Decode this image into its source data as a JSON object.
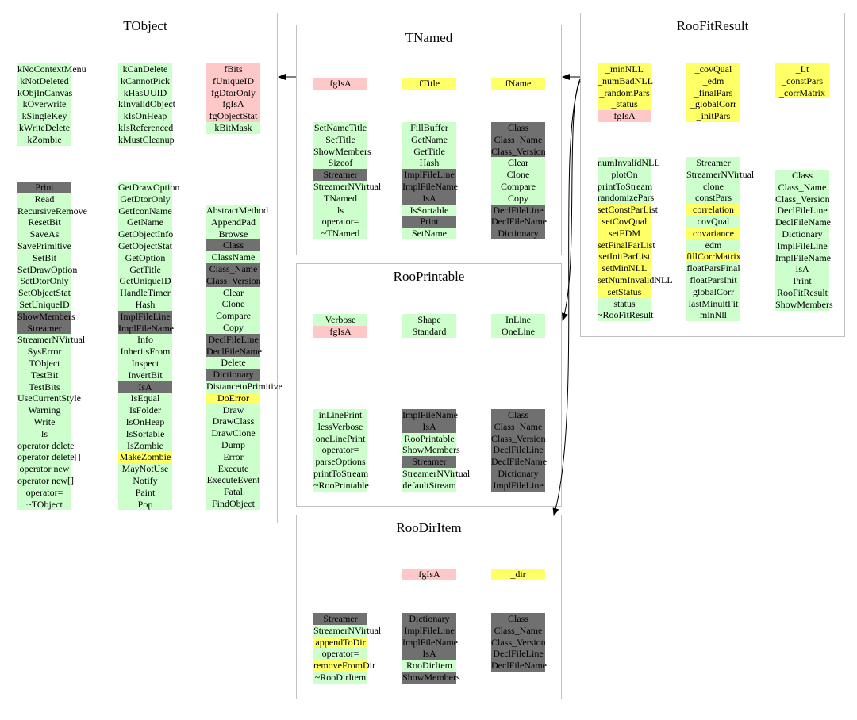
{
  "colors": {
    "green": "#ccffcc",
    "dark": "#707070",
    "yellow": "#ffff66",
    "pink": "#ffc8c8",
    "border": "#c0c0c0"
  },
  "boxes": {
    "tobject": {
      "title": "TObject",
      "col1_top": [
        [
          "kNoContextMenu",
          "g"
        ],
        [
          "kNotDeleted",
          "g"
        ],
        [
          "kObjInCanvas",
          "g"
        ],
        [
          "kOverwrite",
          "g"
        ],
        [
          "kSingleKey",
          "g"
        ],
        [
          "kWriteDelete",
          "g"
        ],
        [
          "kZombie",
          "g"
        ]
      ],
      "col2_top": [
        [
          "kCanDelete",
          "g"
        ],
        [
          "kCannotPick",
          "g"
        ],
        [
          "kHasUUID",
          "g"
        ],
        [
          "kInvalidObject",
          "g"
        ],
        [
          "kIsOnHeap",
          "g"
        ],
        [
          "kIsReferenced",
          "g"
        ],
        [
          "kMustCleanup",
          "g"
        ]
      ],
      "col3_top": [
        [
          "fBits",
          "p"
        ],
        [
          "fUniqueID",
          "p"
        ],
        [
          "fgDtorOnly",
          "p"
        ],
        [
          "fgIsA",
          "p"
        ],
        [
          "fgObjectStat",
          "p"
        ],
        [
          "kBitMask",
          "g"
        ]
      ],
      "col1_bottom": [
        [
          "Print",
          "d"
        ],
        [
          "Read",
          "g"
        ],
        [
          "RecursiveRemove",
          "g"
        ],
        [
          "ResetBit",
          "g"
        ],
        [
          "SaveAs",
          "g"
        ],
        [
          "SavePrimitive",
          "g"
        ],
        [
          "SetBit",
          "g"
        ],
        [
          "SetDrawOption",
          "g"
        ],
        [
          "SetDtorOnly",
          "g"
        ],
        [
          "SetObjectStat",
          "g"
        ],
        [
          "SetUniqueID",
          "g"
        ],
        [
          "ShowMembers",
          "d"
        ],
        [
          "Streamer",
          "d"
        ],
        [
          "StreamerNVirtual",
          "g"
        ],
        [
          "SysError",
          "g"
        ],
        [
          "TObject",
          "g"
        ],
        [
          "TestBit",
          "g"
        ],
        [
          "TestBits",
          "g"
        ],
        [
          "UseCurrentStyle",
          "g"
        ],
        [
          "Warning",
          "g"
        ],
        [
          "Write",
          "g"
        ],
        [
          "ls",
          "g"
        ],
        [
          "operator delete",
          "g"
        ],
        [
          "operator delete[]",
          "g"
        ],
        [
          "operator new",
          "g"
        ],
        [
          "operator new[]",
          "g"
        ],
        [
          "operator=",
          "g"
        ],
        [
          "~TObject",
          "g"
        ]
      ],
      "col2_bottom": [
        [
          "GetDrawOption",
          "g"
        ],
        [
          "GetDtorOnly",
          "g"
        ],
        [
          "GetIconName",
          "g"
        ],
        [
          "GetName",
          "g"
        ],
        [
          "GetObjectInfo",
          "g"
        ],
        [
          "GetObjectStat",
          "g"
        ],
        [
          "GetOption",
          "g"
        ],
        [
          "GetTitle",
          "g"
        ],
        [
          "GetUniqueID",
          "g"
        ],
        [
          "HandleTimer",
          "g"
        ],
        [
          "Hash",
          "g"
        ],
        [
          "ImplFileLine",
          "d"
        ],
        [
          "ImplFileName",
          "d"
        ],
        [
          "Info",
          "g"
        ],
        [
          "InheritsFrom",
          "g"
        ],
        [
          "Inspect",
          "g"
        ],
        [
          "InvertBit",
          "g"
        ],
        [
          "IsA",
          "d"
        ],
        [
          "IsEqual",
          "g"
        ],
        [
          "IsFolder",
          "g"
        ],
        [
          "IsOnHeap",
          "g"
        ],
        [
          "IsSortable",
          "g"
        ],
        [
          "IsZombie",
          "g"
        ],
        [
          "MakeZombie",
          "y"
        ],
        [
          "MayNotUse",
          "g"
        ],
        [
          "Notify",
          "g"
        ],
        [
          "Paint",
          "g"
        ],
        [
          "Pop",
          "g"
        ]
      ],
      "col3_bottom": [
        [
          "AbstractMethod",
          "g"
        ],
        [
          "AppendPad",
          "g"
        ],
        [
          "Browse",
          "g"
        ],
        [
          "Class",
          "d"
        ],
        [
          "ClassName",
          "g"
        ],
        [
          "Class_Name",
          "d"
        ],
        [
          "Class_Version",
          "d"
        ],
        [
          "Clear",
          "g"
        ],
        [
          "Clone",
          "g"
        ],
        [
          "Compare",
          "g"
        ],
        [
          "Copy",
          "g"
        ],
        [
          "DeclFileLine",
          "d"
        ],
        [
          "DeclFileName",
          "d"
        ],
        [
          "Delete",
          "g"
        ],
        [
          "Dictionary",
          "d"
        ],
        [
          "DistancetoPrimitive",
          "g"
        ],
        [
          "DoError",
          "y"
        ],
        [
          "Draw",
          "g"
        ],
        [
          "DrawClass",
          "g"
        ],
        [
          "DrawClone",
          "g"
        ],
        [
          "Dump",
          "g"
        ],
        [
          "Error",
          "g"
        ],
        [
          "Execute",
          "g"
        ],
        [
          "ExecuteEvent",
          "g"
        ],
        [
          "Fatal",
          "g"
        ],
        [
          "FindObject",
          "g"
        ]
      ]
    },
    "tnamed": {
      "title": "TNamed",
      "col1_top": [
        [
          "fgIsA",
          "p"
        ]
      ],
      "col2_top": [
        [
          "fTitle",
          "y"
        ]
      ],
      "col3_top": [
        [
          "fName",
          "y"
        ]
      ],
      "col1_bottom": [
        [
          "SetNameTitle",
          "g"
        ],
        [
          "SetTitle",
          "g"
        ],
        [
          "ShowMembers",
          "g"
        ],
        [
          "Sizeof",
          "g"
        ],
        [
          "Streamer",
          "d"
        ],
        [
          "StreamerNVirtual",
          "g"
        ],
        [
          "TNamed",
          "g"
        ],
        [
          "ls",
          "g"
        ],
        [
          "operator=",
          "g"
        ],
        [
          "~TNamed",
          "g"
        ]
      ],
      "col2_bottom": [
        [
          "FillBuffer",
          "g"
        ],
        [
          "GetName",
          "g"
        ],
        [
          "GetTitle",
          "g"
        ],
        [
          "Hash",
          "g"
        ],
        [
          "ImplFileLine",
          "d"
        ],
        [
          "ImplFileName",
          "d"
        ],
        [
          "IsA",
          "d"
        ],
        [
          "IsSortable",
          "g"
        ],
        [
          "Print",
          "d"
        ],
        [
          "SetName",
          "g"
        ]
      ],
      "col3_bottom": [
        [
          "Class",
          "d"
        ],
        [
          "Class_Name",
          "d"
        ],
        [
          "Class_Version",
          "d"
        ],
        [
          "Clear",
          "g"
        ],
        [
          "Clone",
          "g"
        ],
        [
          "Compare",
          "g"
        ],
        [
          "Copy",
          "g"
        ],
        [
          "DeclFileLine",
          "d"
        ],
        [
          "DeclFileName",
          "d"
        ],
        [
          "Dictionary",
          "d"
        ]
      ]
    },
    "roofitresult": {
      "title": "RooFitResult",
      "col1_top": [
        [
          "_minNLL",
          "y"
        ],
        [
          "_numBadNLL",
          "y"
        ],
        [
          "_randomPars",
          "y"
        ],
        [
          "_status",
          "y"
        ],
        [
          "fgIsA",
          "p"
        ]
      ],
      "col2_top": [
        [
          "_covQual",
          "y"
        ],
        [
          "_edm",
          "y"
        ],
        [
          "_finalPars",
          "y"
        ],
        [
          "_globalCorr",
          "y"
        ],
        [
          "_initPars",
          "y"
        ]
      ],
      "col3_top": [
        [
          "_Lt",
          "y"
        ],
        [
          "_constPars",
          "y"
        ],
        [
          "_corrMatrix",
          "y"
        ]
      ],
      "col1_bottom": [
        [
          "numInvalidNLL",
          "g"
        ],
        [
          "plotOn",
          "g"
        ],
        [
          "printToStream",
          "g"
        ],
        [
          "randomizePars",
          "g"
        ],
        [
          "setConstParList",
          "y"
        ],
        [
          "setCovQual",
          "y"
        ],
        [
          "setEDM",
          "y"
        ],
        [
          "setFinalParList",
          "y"
        ],
        [
          "setInitParList",
          "y"
        ],
        [
          "setMinNLL",
          "y"
        ],
        [
          "setNumInvalidNLL",
          "y"
        ],
        [
          "setStatus",
          "y"
        ],
        [
          "status",
          "g"
        ],
        [
          "~RooFitResult",
          "g"
        ]
      ],
      "col2_bottom": [
        [
          "Streamer",
          "g"
        ],
        [
          "StreamerNVirtual",
          "g"
        ],
        [
          "clone",
          "g"
        ],
        [
          "constPars",
          "g"
        ],
        [
          "correlation",
          "y"
        ],
        [
          "covQual",
          "g"
        ],
        [
          "covariance",
          "y"
        ],
        [
          "edm",
          "g"
        ],
        [
          "fillCorrMatrix",
          "y"
        ],
        [
          "floatParsFinal",
          "g"
        ],
        [
          "floatParsInit",
          "g"
        ],
        [
          "globalCorr",
          "g"
        ],
        [
          "lastMinuitFit",
          "g"
        ],
        [
          "minNll",
          "g"
        ]
      ],
      "col3_bottom": [
        [
          "Class",
          "g"
        ],
        [
          "Class_Name",
          "g"
        ],
        [
          "Class_Version",
          "g"
        ],
        [
          "DeclFileLine",
          "g"
        ],
        [
          "DeclFileName",
          "g"
        ],
        [
          "Dictionary",
          "g"
        ],
        [
          "ImplFileLine",
          "g"
        ],
        [
          "ImplFileName",
          "g"
        ],
        [
          "IsA",
          "g"
        ],
        [
          "Print",
          "g"
        ],
        [
          "RooFitResult",
          "g"
        ],
        [
          "ShowMembers",
          "g"
        ]
      ]
    },
    "rooprintable": {
      "title": "RooPrintable",
      "col1_top": [
        [
          "Verbose",
          "g"
        ],
        [
          "fgIsA",
          "p"
        ]
      ],
      "col2_top": [
        [
          "Shape",
          "g"
        ],
        [
          "Standard",
          "g"
        ]
      ],
      "col3_top": [
        [
          "InLine",
          "g"
        ],
        [
          "OneLine",
          "g"
        ]
      ],
      "col1_bottom": [
        [
          "inLinePrint",
          "g"
        ],
        [
          "lessVerbose",
          "g"
        ],
        [
          "oneLinePrint",
          "g"
        ],
        [
          "operator=",
          "g"
        ],
        [
          "parseOptions",
          "g"
        ],
        [
          "printToStream",
          "g"
        ],
        [
          "~RooPrintable",
          "g"
        ]
      ],
      "col2_bottom": [
        [
          "ImplFileName",
          "d"
        ],
        [
          "IsA",
          "d"
        ],
        [
          "RooPrintable",
          "g"
        ],
        [
          "ShowMembers",
          "g"
        ],
        [
          "Streamer",
          "d"
        ],
        [
          "StreamerNVirtual",
          "g"
        ],
        [
          "defaultStream",
          "g"
        ]
      ],
      "col3_bottom": [
        [
          "Class",
          "d"
        ],
        [
          "Class_Name",
          "d"
        ],
        [
          "Class_Version",
          "d"
        ],
        [
          "DeclFileLine",
          "d"
        ],
        [
          "DeclFileName",
          "d"
        ],
        [
          "Dictionary",
          "d"
        ],
        [
          "ImplFileLine",
          "d"
        ]
      ]
    },
    "roodiritem": {
      "title": "RooDirItem",
      "col1_top": [],
      "col2_top": [
        [
          "fgIsA",
          "p"
        ]
      ],
      "col3_top": [
        [
          "_dir",
          "y"
        ]
      ],
      "col1_bottom": [
        [
          "Streamer",
          "d"
        ],
        [
          "StreamerNVirtual",
          "g"
        ],
        [
          "appendToDir",
          "y"
        ],
        [
          "operator=",
          "g"
        ],
        [
          "removeFromDir",
          "y"
        ],
        [
          "~RooDirItem",
          "g"
        ]
      ],
      "col2_bottom": [
        [
          "Dictionary",
          "d"
        ],
        [
          "ImplFileLine",
          "d"
        ],
        [
          "ImplFileName",
          "d"
        ],
        [
          "IsA",
          "d"
        ],
        [
          "RooDirItem",
          "g"
        ],
        [
          "ShowMembers",
          "d"
        ]
      ],
      "col3_bottom": [
        [
          "Class",
          "d"
        ],
        [
          "Class_Name",
          "d"
        ],
        [
          "Class_Version",
          "d"
        ],
        [
          "DeclFileLine",
          "d"
        ],
        [
          "DeclFileName",
          "d"
        ]
      ]
    }
  },
  "edges": [
    {
      "from": "tnamed",
      "to": "tobject"
    },
    {
      "from": "roofitresult",
      "to": "tnamed"
    },
    {
      "from": "roofitresult",
      "to": "rooprintable"
    },
    {
      "from": "roofitresult",
      "to": "roodiritem"
    }
  ]
}
